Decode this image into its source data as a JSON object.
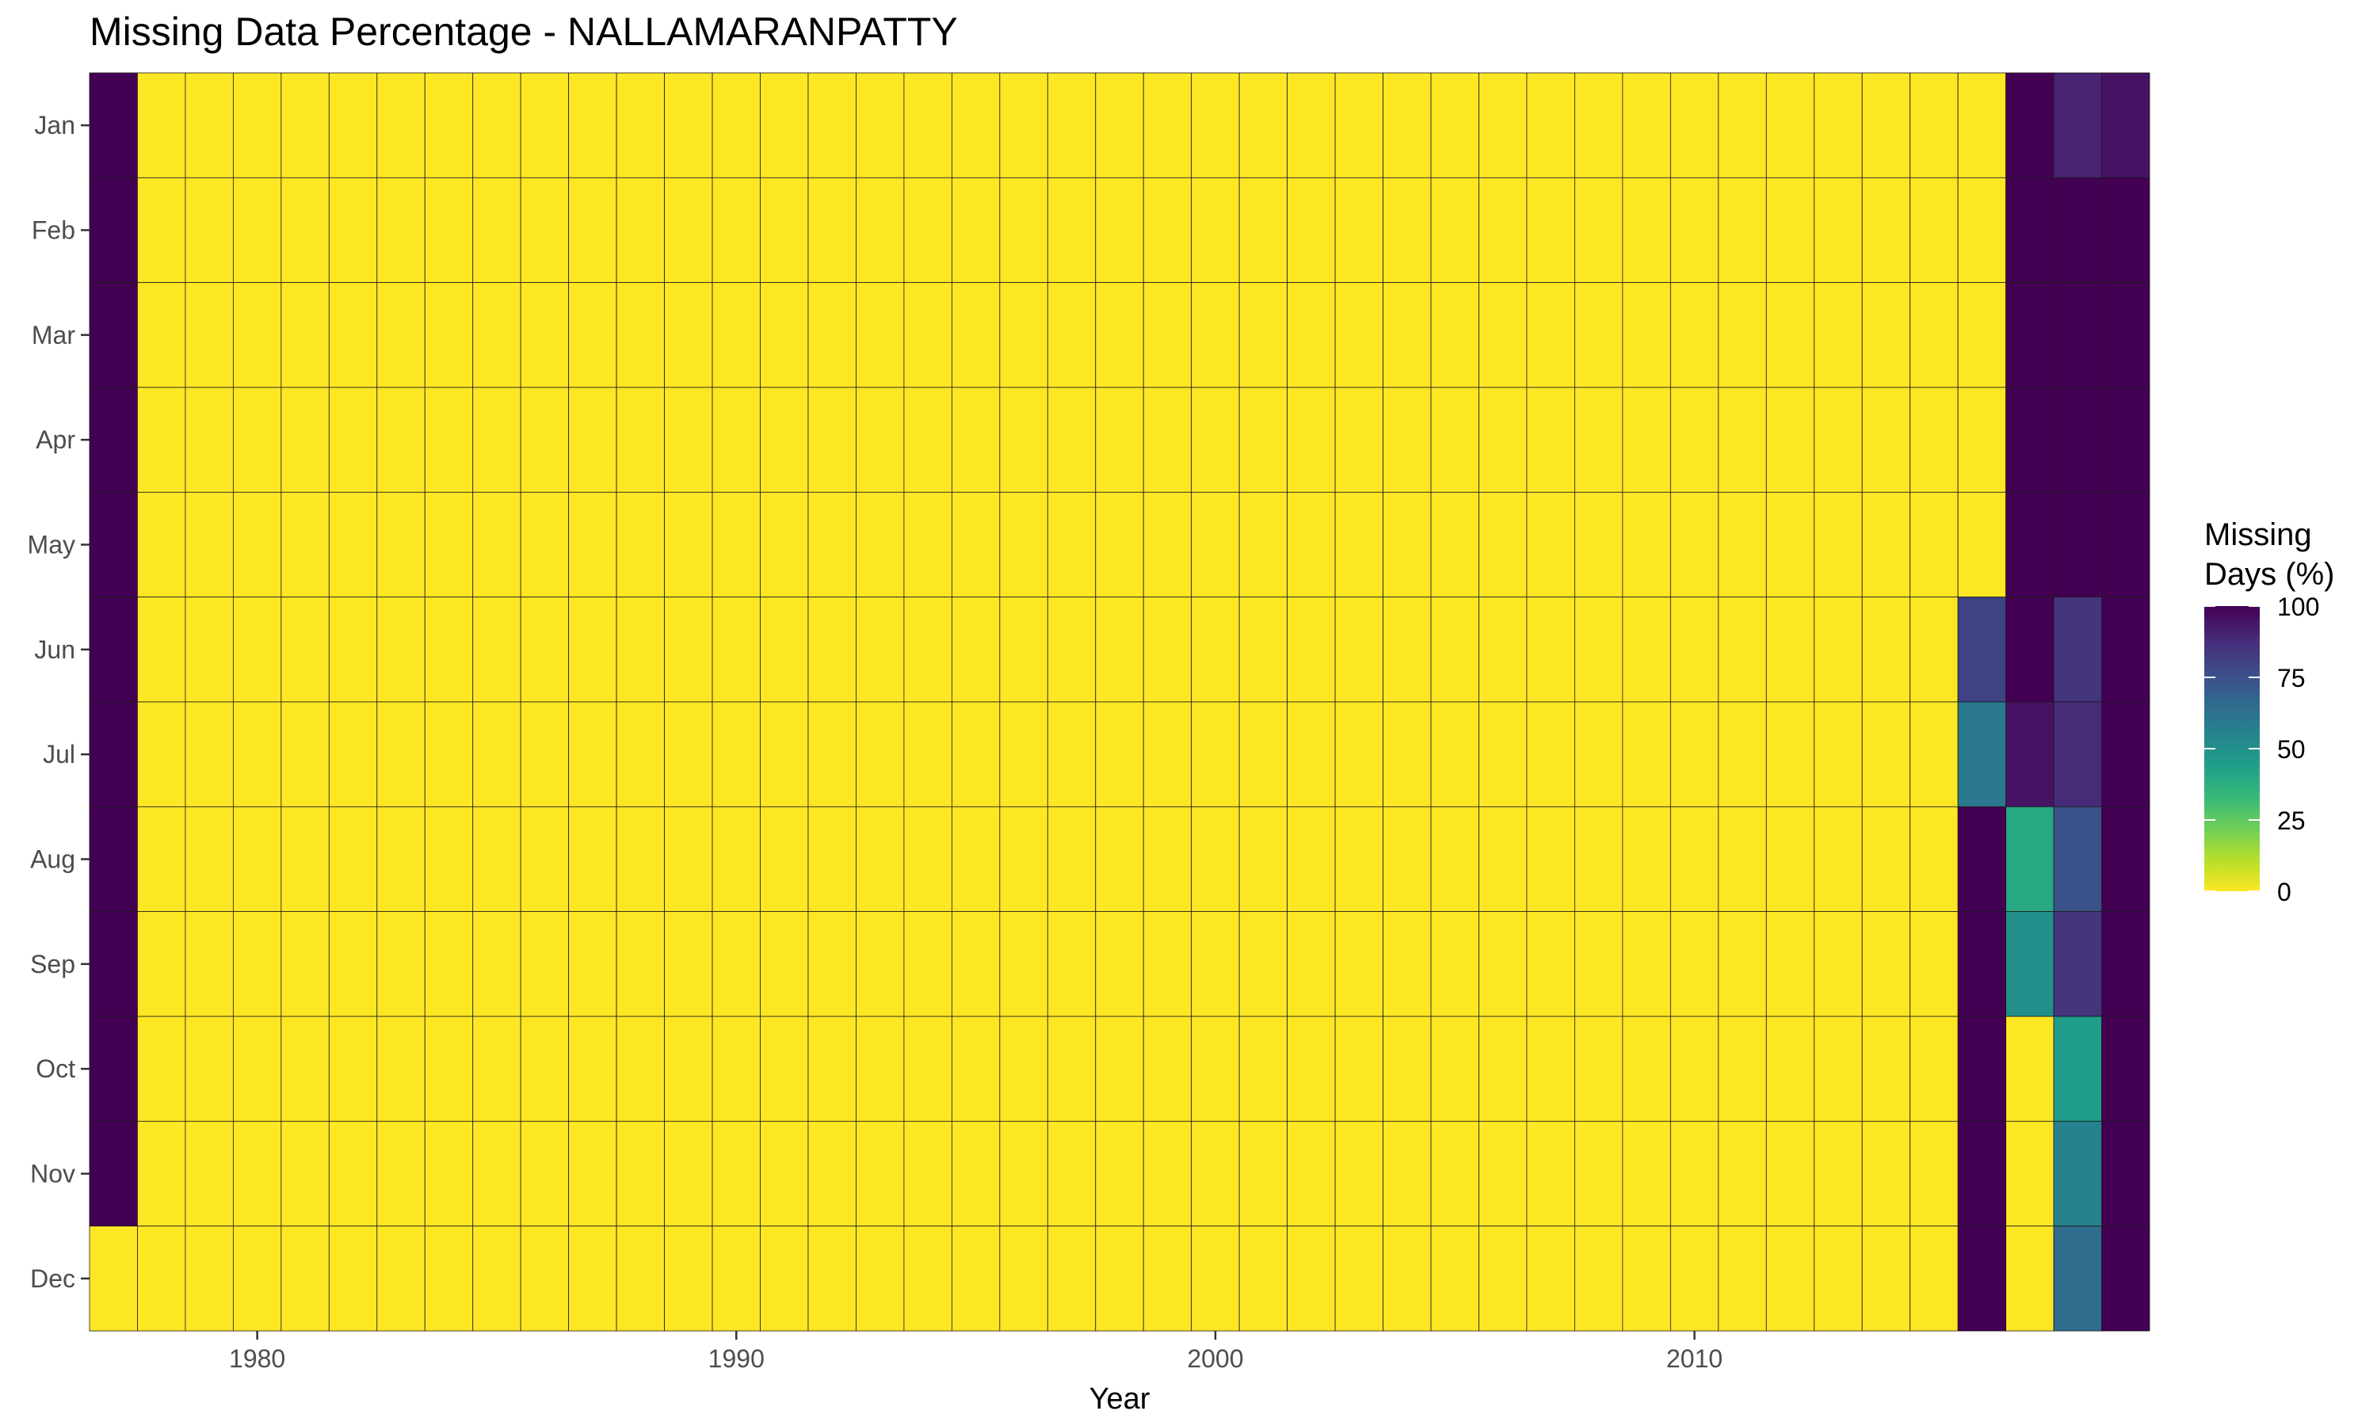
{
  "chart_data": {
    "type": "heatmap",
    "title": "Missing Data Percentage - NALLAMARANPATTY",
    "xlabel": "Year",
    "ylabel": "",
    "x_ticks": [
      1980,
      1990,
      2000,
      2010
    ],
    "years": [
      1977,
      1978,
      1979,
      1980,
      1981,
      1982,
      1983,
      1984,
      1985,
      1986,
      1987,
      1988,
      1989,
      1990,
      1991,
      1992,
      1993,
      1994,
      1995,
      1996,
      1997,
      1998,
      1999,
      2000,
      2001,
      2002,
      2003,
      2004,
      2005,
      2006,
      2007,
      2008,
      2009,
      2010,
      2011,
      2012,
      2013,
      2014,
      2015,
      2016,
      2017,
      2018,
      2019
    ],
    "months": [
      "Jan",
      "Feb",
      "Mar",
      "Apr",
      "May",
      "Jun",
      "Jul",
      "Aug",
      "Sep",
      "Oct",
      "Nov",
      "Dec"
    ],
    "default_value": 0,
    "first_year_values": [
      100,
      100,
      100,
      100,
      100,
      100,
      100,
      100,
      100,
      100,
      100,
      0
    ],
    "last_years": [
      2016,
      2017,
      2018,
      2019
    ],
    "last_years_values": {
      "2016": [
        0,
        0,
        0,
        0,
        0,
        80,
        60,
        100,
        100,
        100,
        100,
        100
      ],
      "2017": [
        100,
        100,
        100,
        100,
        100,
        100,
        95,
        40,
        50,
        0,
        0,
        0
      ],
      "2018": [
        90,
        100,
        100,
        100,
        100,
        85,
        88,
        75,
        85,
        45,
        55,
        65
      ],
      "2019": [
        95,
        100,
        100,
        100,
        100,
        100,
        100,
        100,
        100,
        100,
        100,
        100
      ]
    },
    "legend": {
      "title_lines": [
        "Missing",
        "Days (%)"
      ],
      "ticks": [
        100,
        75,
        50,
        25,
        0
      ],
      "placement": "right",
      "range": [
        0,
        100
      ]
    },
    "colormap": "viridis",
    "colormap_stops": [
      "#fde725",
      "#b5de2b",
      "#6ece58",
      "#35b779",
      "#1f9e89",
      "#26828e",
      "#31688e",
      "#3e4989",
      "#482878",
      "#440154"
    ]
  }
}
